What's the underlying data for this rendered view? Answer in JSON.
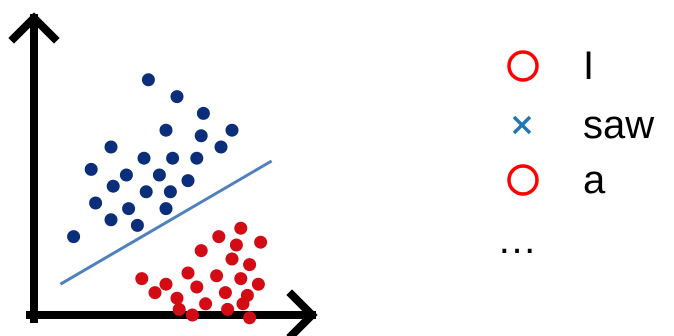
{
  "legend": {
    "items": [
      {
        "marker": "circle",
        "label": "I",
        "color": "#ff0000"
      },
      {
        "marker": "cross",
        "label": "saw",
        "color": "#1f77b4"
      },
      {
        "marker": "circle",
        "label": "a",
        "color": "#ff0000"
      }
    ],
    "ellipsis": "…"
  },
  "colors": {
    "blue_points": "#0b2e7a",
    "red_points": "#d30b14",
    "boundary": "#4f81bd",
    "axes": "#000000"
  },
  "chart_data": {
    "type": "scatter",
    "title": "",
    "xlabel": "",
    "ylabel": "",
    "grid": false,
    "series": [
      {
        "color": "#0b2e7a",
        "points": [
          [
            0.52,
            0.84
          ],
          [
            0.65,
            0.78
          ],
          [
            0.77,
            0.72
          ],
          [
            0.9,
            0.66
          ],
          [
            0.6,
            0.66
          ],
          [
            0.76,
            0.64
          ],
          [
            0.85,
            0.6
          ],
          [
            0.35,
            0.6
          ],
          [
            0.5,
            0.56
          ],
          [
            0.63,
            0.56
          ],
          [
            0.74,
            0.56
          ],
          [
            0.26,
            0.52
          ],
          [
            0.42,
            0.5
          ],
          [
            0.57,
            0.5
          ],
          [
            0.7,
            0.48
          ],
          [
            0.36,
            0.46
          ],
          [
            0.51,
            0.44
          ],
          [
            0.62,
            0.44
          ],
          [
            0.28,
            0.4
          ],
          [
            0.43,
            0.38
          ],
          [
            0.6,
            0.38
          ],
          [
            0.35,
            0.34
          ],
          [
            0.47,
            0.32
          ],
          [
            0.18,
            0.28
          ]
        ]
      },
      {
        "color": "#d30b14",
        "points": [
          [
            0.94,
            0.31
          ],
          [
            0.84,
            0.28
          ],
          [
            0.92,
            0.25
          ],
          [
            1.03,
            0.26
          ],
          [
            0.76,
            0.23
          ],
          [
            0.9,
            0.2
          ],
          [
            0.98,
            0.18
          ],
          [
            0.7,
            0.15
          ],
          [
            0.83,
            0.14
          ],
          [
            0.94,
            0.13
          ],
          [
            1.02,
            0.11
          ],
          [
            0.49,
            0.13
          ],
          [
            0.6,
            0.11
          ],
          [
            0.74,
            0.1
          ],
          [
            0.87,
            0.08
          ],
          [
            0.97,
            0.07
          ],
          [
            0.55,
            0.08
          ],
          [
            0.65,
            0.06
          ],
          [
            0.78,
            0.04
          ],
          [
            0.95,
            0.04
          ],
          [
            0.66,
            0.02
          ],
          [
            0.88,
            0.02
          ],
          [
            0.72,
            0.0
          ],
          [
            0.98,
            -0.01
          ]
        ]
      }
    ],
    "decision_boundary": {
      "color": "#4f81bd",
      "from": [
        0.12,
        0.11
      ],
      "to": [
        1.08,
        0.55
      ]
    }
  }
}
